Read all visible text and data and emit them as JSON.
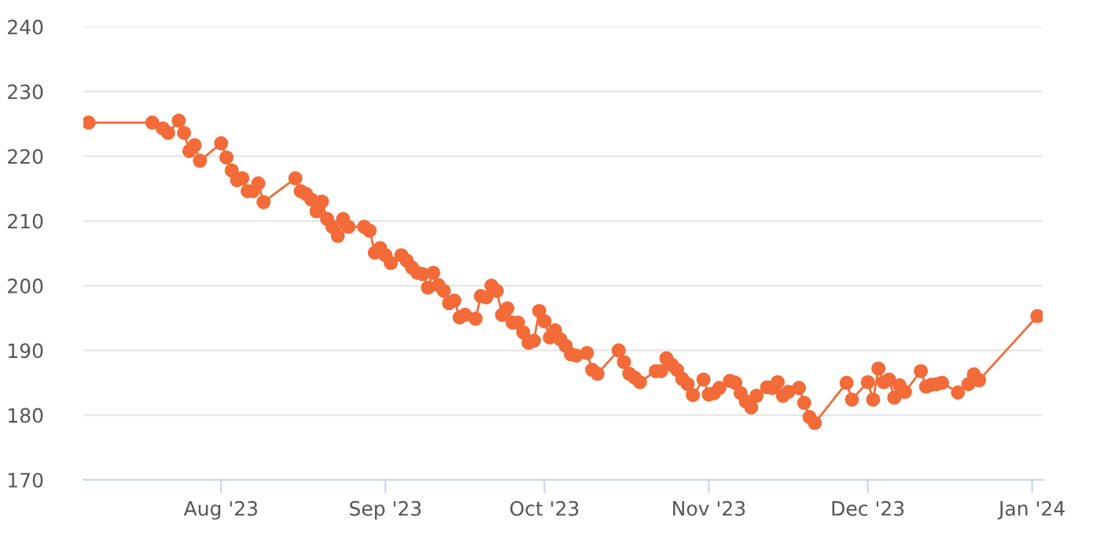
{
  "chart_data": {
    "type": "line",
    "x": [
      "2023-07-07",
      "2023-07-19",
      "2023-07-21",
      "2023-07-22",
      "2023-07-24",
      "2023-07-25",
      "2023-07-26",
      "2023-07-27",
      "2023-07-28",
      "2023-08-01",
      "2023-08-02",
      "2023-08-03",
      "2023-08-04",
      "2023-08-05",
      "2023-08-06",
      "2023-08-07",
      "2023-08-08",
      "2023-08-09",
      "2023-08-15",
      "2023-08-16",
      "2023-08-17",
      "2023-08-18",
      "2023-08-19",
      "2023-08-20",
      "2023-08-21",
      "2023-08-22",
      "2023-08-23",
      "2023-08-24",
      "2023-08-25",
      "2023-08-28",
      "2023-08-29",
      "2023-08-30",
      "2023-08-31",
      "2023-09-01",
      "2023-09-02",
      "2023-09-04",
      "2023-09-05",
      "2023-09-06",
      "2023-09-07",
      "2023-09-08",
      "2023-09-09",
      "2023-09-10",
      "2023-09-11",
      "2023-09-12",
      "2023-09-13",
      "2023-09-14",
      "2023-09-15",
      "2023-09-16",
      "2023-09-18",
      "2023-09-19",
      "2023-09-20",
      "2023-09-21",
      "2023-09-22",
      "2023-09-23",
      "2023-09-24",
      "2023-09-25",
      "2023-09-26",
      "2023-09-27",
      "2023-09-28",
      "2023-09-29",
      "2023-09-30",
      "2023-10-01",
      "2023-10-02",
      "2023-10-03",
      "2023-10-04",
      "2023-10-05",
      "2023-10-06",
      "2023-10-07",
      "2023-10-09",
      "2023-10-10",
      "2023-10-11",
      "2023-10-15",
      "2023-10-16",
      "2023-10-17",
      "2023-10-18",
      "2023-10-19",
      "2023-10-22",
      "2023-10-23",
      "2023-10-24",
      "2023-10-25",
      "2023-10-26",
      "2023-10-27",
      "2023-10-28",
      "2023-10-29",
      "2023-10-31",
      "2023-11-01",
      "2023-11-02",
      "2023-11-03",
      "2023-11-05",
      "2023-11-06",
      "2023-11-07",
      "2023-11-08",
      "2023-11-09",
      "2023-11-10",
      "2023-11-12",
      "2023-11-13",
      "2023-11-14",
      "2023-11-15",
      "2023-11-16",
      "2023-11-18",
      "2023-11-19",
      "2023-11-20",
      "2023-11-21",
      "2023-11-27",
      "2023-11-28",
      "2023-12-01",
      "2023-12-02",
      "2023-12-03",
      "2023-12-04",
      "2023-12-05",
      "2023-12-06",
      "2023-12-07",
      "2023-12-08",
      "2023-12-11",
      "2023-12-12",
      "2023-12-13",
      "2023-12-14",
      "2023-12-15",
      "2023-12-18",
      "2023-12-20",
      "2023-12-21",
      "2023-12-22",
      "2024-01-02"
    ],
    "series": [
      {
        "color": "#f26b38",
        "values": [
          225.2,
          225.2,
          224.3,
          223.6,
          225.5,
          223.6,
          220.8,
          221.7,
          219.3,
          222.0,
          219.8,
          217.8,
          216.3,
          216.6,
          214.6,
          214.6,
          215.8,
          212.9,
          216.6,
          214.6,
          214.2,
          213.3,
          211.5,
          213.0,
          210.3,
          209.1,
          207.7,
          210.3,
          209.1,
          209.1,
          208.5,
          205.1,
          205.8,
          204.7,
          203.5,
          204.7,
          203.9,
          202.8,
          202.0,
          201.8,
          199.7,
          202.0,
          200.1,
          199.2,
          197.3,
          197.7,
          195.1,
          195.5,
          194.9,
          198.4,
          198.2,
          200.0,
          199.2,
          195.5,
          196.5,
          194.3,
          194.3,
          192.8,
          191.2,
          191.5,
          196.1,
          194.5,
          192.0,
          193.1,
          191.7,
          190.7,
          189.4,
          189.2,
          189.6,
          187.0,
          186.4,
          190.0,
          188.2,
          186.4,
          185.8,
          185.1,
          186.8,
          186.8,
          188.8,
          187.8,
          187.0,
          185.6,
          184.8,
          183.1,
          185.5,
          183.2,
          183.4,
          184.2,
          185.3,
          185.0,
          183.4,
          182.1,
          181.2,
          183.0,
          184.3,
          184.2,
          185.1,
          183.0,
          183.6,
          184.2,
          181.9,
          179.7,
          178.8,
          185.0,
          182.4,
          185.1,
          182.4,
          187.2,
          185.1,
          185.5,
          182.7,
          184.6,
          183.6,
          186.8,
          184.4,
          184.7,
          184.8,
          185.0,
          183.5,
          184.8,
          186.3,
          185.4,
          195.3
        ]
      }
    ],
    "marker": "circle",
    "line_style": "solid",
    "grid": "y",
    "legend": false,
    "xlim": [
      "2023-07-06",
      "2024-01-03"
    ],
    "xticks": [
      {
        "value": "2023-08-01",
        "label": "Aug '23"
      },
      {
        "value": "2023-09-01",
        "label": "Sep '23"
      },
      {
        "value": "2023-10-01",
        "label": "Oct '23"
      },
      {
        "value": "2023-11-01",
        "label": "Nov '23"
      },
      {
        "value": "2023-12-01",
        "label": "Dec '23"
      },
      {
        "value": "2024-01-01",
        "label": "Jan '24"
      }
    ],
    "ylim": [
      170,
      240
    ],
    "yticks": [
      170,
      180,
      190,
      200,
      210,
      220,
      230,
      240
    ]
  }
}
